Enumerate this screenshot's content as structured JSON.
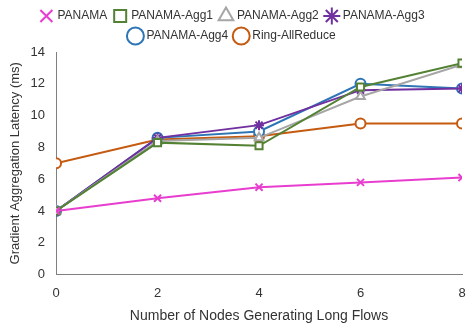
{
  "chart_data": {
    "type": "line",
    "x_label": "Number of Nodes Generating Long Flows",
    "y_label": "Gradient Aggregation Latency (ms)",
    "x": [
      0,
      2,
      4,
      6,
      8
    ],
    "xlim": [
      0,
      8
    ],
    "xticks": [
      0,
      2,
      4,
      6,
      8
    ],
    "ylim": [
      0,
      14
    ],
    "yticks": [
      0,
      2,
      4,
      6,
      8,
      10,
      12,
      14
    ],
    "grid": false,
    "legend": "top",
    "series": [
      {
        "name": "PANAMA",
        "color": "#e83ecf",
        "marker": "x",
        "values": [
          4.0,
          4.8,
          5.5,
          5.8,
          6.1
        ]
      },
      {
        "name": "PANAMA-Agg1",
        "color": "#548235",
        "marker": "square",
        "values": [
          4.0,
          8.3,
          8.1,
          11.8,
          13.3
        ]
      },
      {
        "name": "PANAMA-Agg2",
        "color": "#a6a6a6",
        "marker": "triangle",
        "values": [
          4.0,
          8.4,
          8.6,
          11.2,
          13.2
        ]
      },
      {
        "name": "PANAMA-Agg3",
        "color": "#7030a0",
        "marker": "star",
        "values": [
          4.0,
          8.6,
          9.4,
          11.6,
          11.7
        ]
      },
      {
        "name": "PANAMA-Agg4",
        "color": "#2e75b6",
        "marker": "circle",
        "values": [
          4.0,
          8.6,
          9.0,
          12.0,
          11.7
        ]
      },
      {
        "name": "Ring-AllReduce",
        "color": "#c55a11",
        "marker": "circle",
        "values": [
          7.0,
          8.5,
          8.7,
          9.5,
          9.5
        ]
      }
    ]
  }
}
